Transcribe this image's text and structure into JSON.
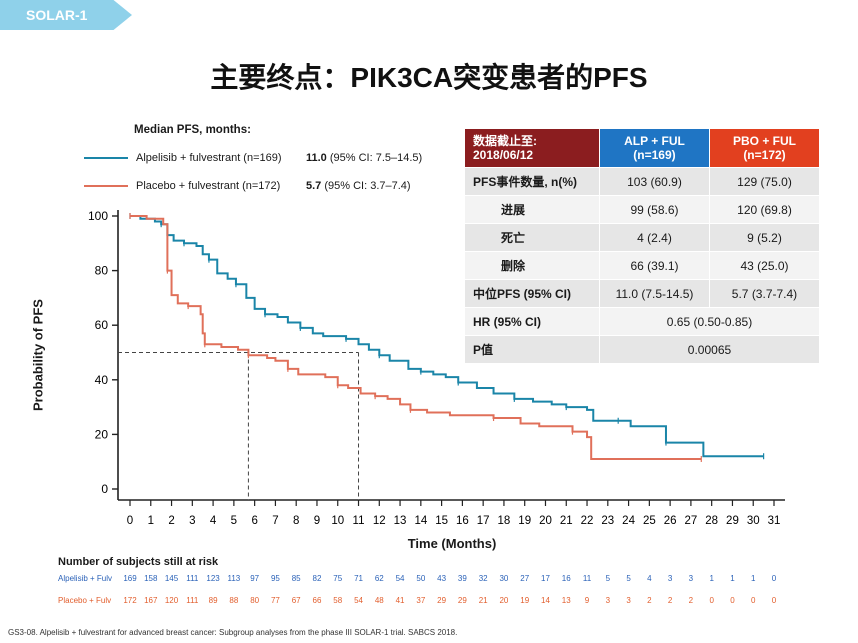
{
  "slide_tag": "SOLAR-1",
  "title": "主要终点：PIK3CA突变患者的PFS",
  "legend": {
    "heading": "Median PFS, months:",
    "items": [
      {
        "name": "Alpelisib + fulvestrant (n=169)",
        "median_value": "11.0",
        "median_ci": "(95% CI: 7.5–14.5)",
        "color": "#1a85a8"
      },
      {
        "name": "Placebo + fulvestrant (n=172)",
        "median_value": "5.7",
        "median_ci": "(95% CI: 3.7–7.4)",
        "color": "#e0705a"
      }
    ]
  },
  "table": {
    "headers": [
      "数据截止至:\n2018/06/12",
      "ALP + FUL\n(n=169)",
      "PBO + FUL\n(n=172)"
    ],
    "rows": [
      {
        "label": "PFS事件数量, n(%)",
        "alp": "103 (60.9)",
        "pbo": "129 (75.0)"
      },
      {
        "label": "进展",
        "alp": "99 (58.6)",
        "pbo": "120 (69.8)"
      },
      {
        "label": "死亡",
        "alp": "4 (2.4)",
        "pbo": "9 (5.2)"
      },
      {
        "label": "删除",
        "alp": "66 (39.1)",
        "pbo": "43 (25.0)"
      },
      {
        "label": "中位PFS (95% CI)",
        "alp": "11.0 (7.5-14.5)",
        "pbo": "5.7 (3.7-7.4)"
      },
      {
        "label": "HR (95% CI)",
        "merged": "0.65 (0.50-0.85)"
      },
      {
        "label": "P值",
        "merged": "0.00065"
      }
    ]
  },
  "chart_data": {
    "type": "line",
    "xlabel": "Time (Months)",
    "ylabel": "Probability of PFS",
    "xlim": [
      0,
      31
    ],
    "ylim": [
      0,
      100
    ],
    "x_ticks": [
      0,
      1,
      2,
      3,
      4,
      5,
      6,
      7,
      8,
      9,
      10,
      11,
      12,
      13,
      14,
      15,
      16,
      17,
      18,
      19,
      20,
      21,
      22,
      23,
      24,
      25,
      26,
      27,
      28,
      29,
      30,
      31
    ],
    "y_ticks": [
      0,
      20,
      40,
      60,
      80,
      100
    ],
    "median_line_y": 50,
    "median_markers_x": [
      5.7,
      11.0
    ],
    "series": [
      {
        "name": "Alpelisib + fulvestrant",
        "color": "#1a85a8",
        "points": [
          [
            0,
            100
          ],
          [
            0.5,
            99
          ],
          [
            1.2,
            98
          ],
          [
            1.5,
            97
          ],
          [
            1.8,
            93
          ],
          [
            2.1,
            91
          ],
          [
            2.6,
            90
          ],
          [
            3.2,
            89
          ],
          [
            3.5,
            86
          ],
          [
            3.8,
            84
          ],
          [
            4.2,
            79
          ],
          [
            4.7,
            77
          ],
          [
            5.1,
            75
          ],
          [
            5.6,
            70
          ],
          [
            6,
            66
          ],
          [
            6.5,
            64
          ],
          [
            7.1,
            63
          ],
          [
            7.6,
            61
          ],
          [
            8.2,
            59
          ],
          [
            8.8,
            57
          ],
          [
            9.3,
            56
          ],
          [
            10.4,
            55
          ],
          [
            11.0,
            53
          ],
          [
            11.5,
            51
          ],
          [
            12,
            49
          ],
          [
            12.5,
            47
          ],
          [
            13.4,
            44
          ],
          [
            14,
            43
          ],
          [
            14.6,
            42
          ],
          [
            15.2,
            41
          ],
          [
            15.8,
            39
          ],
          [
            16.7,
            37
          ],
          [
            17.5,
            35
          ],
          [
            18.5,
            33
          ],
          [
            19.4,
            32
          ],
          [
            20.3,
            31
          ],
          [
            21,
            30
          ],
          [
            22,
            29
          ],
          [
            22.3,
            25
          ],
          [
            23.5,
            25
          ],
          [
            24.1,
            23
          ],
          [
            25.7,
            23
          ],
          [
            25.8,
            17
          ],
          [
            27.5,
            17
          ],
          [
            27.6,
            12
          ],
          [
            30.5,
            12
          ]
        ]
      },
      {
        "name": "Placebo + fulvestrant",
        "color": "#e0705a",
        "points": [
          [
            0,
            100
          ],
          [
            0.8,
            99
          ],
          [
            1.6,
            97
          ],
          [
            1.8,
            80
          ],
          [
            2,
            71
          ],
          [
            2.3,
            68
          ],
          [
            2.8,
            67
          ],
          [
            3.4,
            64
          ],
          [
            3.5,
            57
          ],
          [
            3.6,
            53
          ],
          [
            4.4,
            52
          ],
          [
            5.2,
            51
          ],
          [
            5.7,
            49
          ],
          [
            6.6,
            48
          ],
          [
            7,
            47
          ],
          [
            7.6,
            44
          ],
          [
            8.1,
            42
          ],
          [
            9.4,
            41
          ],
          [
            10,
            38
          ],
          [
            10.5,
            37
          ],
          [
            11.1,
            35
          ],
          [
            11.8,
            34
          ],
          [
            12.4,
            33
          ],
          [
            13,
            31
          ],
          [
            13.5,
            29
          ],
          [
            14.3,
            28
          ],
          [
            15.4,
            27
          ],
          [
            17.5,
            26
          ],
          [
            18.8,
            24
          ],
          [
            19.7,
            23
          ],
          [
            21.3,
            21
          ],
          [
            22,
            19
          ],
          [
            22.2,
            11
          ],
          [
            27.5,
            11
          ]
        ]
      }
    ]
  },
  "risk": {
    "title": "Number of subjects still at risk",
    "rows": [
      {
        "label": "Alpelisib + Fulv",
        "color": "#2b62b8",
        "values": [
          "169",
          "158",
          "145",
          "111",
          "123",
          "113",
          "97",
          "95",
          "85",
          "82",
          "75",
          "71",
          "62",
          "54",
          "50",
          "43",
          "39",
          "32",
          "30",
          "27",
          "17",
          "16",
          "11",
          "5",
          "5",
          "4",
          "3",
          "3",
          "1",
          "1",
          "1",
          "0"
        ]
      },
      {
        "label": "Placebo + Fulv",
        "color": "#e25e2d",
        "values": [
          "172",
          "167",
          "120",
          "111",
          "89",
          "88",
          "80",
          "77",
          "67",
          "66",
          "58",
          "54",
          "48",
          "41",
          "37",
          "29",
          "29",
          "21",
          "20",
          "19",
          "14",
          "13",
          "9",
          "3",
          "3",
          "2",
          "2",
          "2",
          "0",
          "0",
          "0",
          "0"
        ]
      }
    ]
  },
  "footnote": "GS3-08. Alpelisib + fulvestrant for advanced breast cancer: Subgroup analyses from the phase III SOLAR-1 trial. SABCS 2018."
}
